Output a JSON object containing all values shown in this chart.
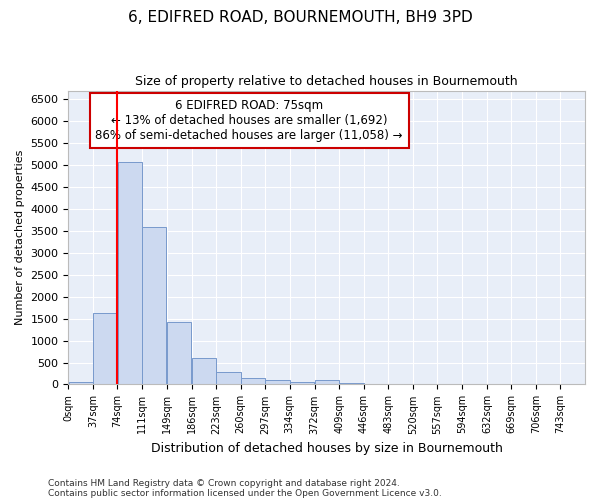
{
  "title": "6, EDIFRED ROAD, BOURNEMOUTH, BH9 3PD",
  "subtitle": "Size of property relative to detached houses in Bournemouth",
  "xlabel": "Distribution of detached houses by size in Bournemouth",
  "ylabel": "Number of detached properties",
  "footnote1": "Contains HM Land Registry data © Crown copyright and database right 2024.",
  "footnote2": "Contains public sector information licensed under the Open Government Licence v3.0.",
  "annotation_line1": "6 EDIFRED ROAD: 75sqm",
  "annotation_line2": "← 13% of detached houses are smaller (1,692)",
  "annotation_line3": "86% of semi-detached houses are larger (11,058) →",
  "bar_color": "#ccd9f0",
  "bar_edge_color": "#7799cc",
  "red_line_x": 74,
  "bin_width": 37,
  "bins": [
    0,
    37,
    74,
    111,
    149,
    186,
    223,
    260,
    297,
    334,
    372,
    409,
    446,
    483,
    520,
    557,
    594,
    632,
    669,
    706,
    743
  ],
  "counts": [
    60,
    1640,
    5080,
    3580,
    1430,
    610,
    290,
    150,
    100,
    50,
    90,
    30,
    20,
    10,
    5,
    5,
    3,
    2,
    1,
    1
  ],
  "ylim": [
    0,
    6700
  ],
  "yticks": [
    0,
    500,
    1000,
    1500,
    2000,
    2500,
    3000,
    3500,
    4000,
    4500,
    5000,
    5500,
    6000,
    6500
  ],
  "background_color": "#ffffff",
  "plot_bg_color": "#e8eef8",
  "grid_color": "#ffffff",
  "title_fontsize": 11,
  "subtitle_fontsize": 9,
  "annotation_box_color": "#ffffff",
  "annotation_border_color": "#cc0000",
  "annotation_fontsize": 8.5
}
